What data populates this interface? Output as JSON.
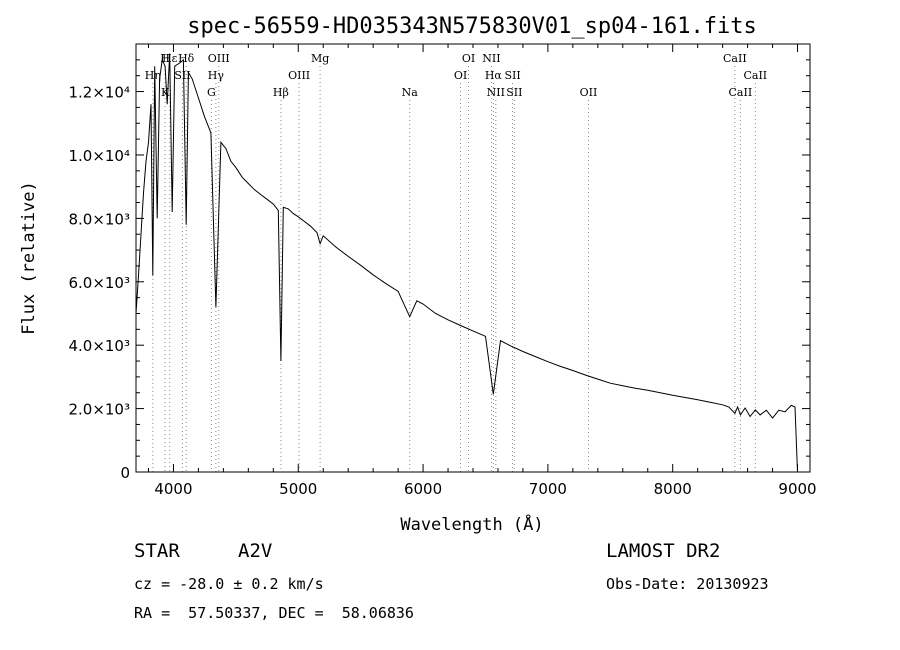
{
  "chart_data": {
    "type": "line",
    "title": "spec-56559-HD035343N575830V01_sp04-161.fits",
    "xlabel": "Wavelength (Å)",
    "ylabel": "Flux (relative)",
    "xlim": [
      3700,
      9100
    ],
    "ylim": [
      0,
      13500
    ],
    "x_ticks": [
      {
        "value": 4000,
        "label": "4000"
      },
      {
        "value": 5000,
        "label": "5000"
      },
      {
        "value": 6000,
        "label": "6000"
      },
      {
        "value": 7000,
        "label": "7000"
      },
      {
        "value": 8000,
        "label": "8000"
      },
      {
        "value": 9000,
        "label": "9000"
      }
    ],
    "y_ticks": [
      {
        "value": 0,
        "label": "0"
      },
      {
        "value": 2000,
        "label": "2.0×10³"
      },
      {
        "value": 4000,
        "label": "4.0×10³"
      },
      {
        "value": 6000,
        "label": "6.0×10³"
      },
      {
        "value": 8000,
        "label": "8.0×10³"
      },
      {
        "value": 10000,
        "label": "1.0×10⁴"
      },
      {
        "value": 12000,
        "label": "1.2×10⁴"
      }
    ],
    "line_color": "#000000",
    "marker_color": "#888888",
    "spectral_lines": [
      {
        "label": "Hε",
        "wavelength": 3970,
        "row": 0
      },
      {
        "label": "H",
        "wavelength": 3933,
        "row": 0
      },
      {
        "label": "Hδ",
        "wavelength": 4102,
        "row": 0
      },
      {
        "label": "OIII",
        "wavelength": 4363,
        "row": 0
      },
      {
        "label": "Mg",
        "wavelength": 5175,
        "row": 0
      },
      {
        "label": "OI",
        "wavelength": 6364,
        "row": 0
      },
      {
        "label": "NII",
        "wavelength": 6548,
        "row": 0
      },
      {
        "label": "CaII",
        "wavelength": 8498,
        "row": 0
      },
      {
        "label": "Hη",
        "wavelength": 3835,
        "row": 1
      },
      {
        "label": "SII",
        "wavelength": 4072,
        "row": 1
      },
      {
        "label": "Hγ",
        "wavelength": 4340,
        "row": 1
      },
      {
        "label": "OIII",
        "wavelength": 5007,
        "row": 1
      },
      {
        "label": "OI",
        "wavelength": 6300,
        "row": 1
      },
      {
        "label": "Hα",
        "wavelength": 6563,
        "row": 1
      },
      {
        "label": "SII",
        "wavelength": 6717,
        "row": 1
      },
      {
        "label": "CaII",
        "wavelength": 8662,
        "row": 1
      },
      {
        "label": "K",
        "wavelength": 3933,
        "row": 2
      },
      {
        "label": "G",
        "wavelength": 4304,
        "row": 2
      },
      {
        "label": "Hβ",
        "wavelength": 4861,
        "row": 2
      },
      {
        "label": "Na",
        "wavelength": 5893,
        "row": 2
      },
      {
        "label": "NII",
        "wavelength": 6583,
        "row": 2
      },
      {
        "label": "SII",
        "wavelength": 6731,
        "row": 2
      },
      {
        "label": "OII",
        "wavelength": 7325,
        "row": 2
      },
      {
        "label": "CaII",
        "wavelength": 8542,
        "row": 2
      }
    ],
    "series": [
      {
        "x": [
          3700,
          3720,
          3740,
          3760,
          3780,
          3800,
          3820,
          3835,
          3850,
          3870,
          3889,
          3910,
          3933,
          3950,
          3970,
          3990,
          4010,
          4050,
          4080,
          4102,
          4120,
          4150,
          4200,
          4250,
          4300,
          4340,
          4380,
          4420,
          4460,
          4500,
          4550,
          4600,
          4650,
          4700,
          4750,
          4800,
          4840,
          4861,
          4880,
          4920,
          4960,
          5000,
          5050,
          5100,
          5150,
          5175,
          5200,
          5300,
          5400,
          5500,
          5600,
          5700,
          5800,
          5893,
          5950,
          6000,
          6100,
          6200,
          6300,
          6400,
          6500,
          6563,
          6620,
          6700,
          6800,
          6900,
          7000,
          7100,
          7200,
          7300,
          7400,
          7500,
          7600,
          7700,
          7800,
          7900,
          8000,
          8100,
          8200,
          8300,
          8400,
          8450,
          8498,
          8520,
          8542,
          8580,
          8620,
          8662,
          8700,
          8750,
          8800,
          8850,
          8900,
          8950,
          8980,
          9000
        ],
        "y": [
          5000,
          6200,
          7500,
          8800,
          9800,
          10400,
          11600,
          6200,
          12800,
          8000,
          12400,
          13000,
          12800,
          11600,
          13200,
          8200,
          12800,
          12900,
          13000,
          7800,
          12600,
          12400,
          11800,
          11200,
          10700,
          5200,
          10400,
          10200,
          9800,
          9600,
          9300,
          9100,
          8900,
          8750,
          8600,
          8450,
          8250,
          3500,
          8350,
          8300,
          8150,
          8050,
          7900,
          7750,
          7550,
          7200,
          7450,
          7100,
          6800,
          6520,
          6220,
          5950,
          5700,
          4900,
          5400,
          5300,
          5000,
          4800,
          4620,
          4450,
          4280,
          2450,
          4140,
          3980,
          3800,
          3640,
          3480,
          3330,
          3200,
          3060,
          2930,
          2800,
          2720,
          2640,
          2580,
          2500,
          2420,
          2350,
          2280,
          2200,
          2120,
          2050,
          1850,
          2050,
          1800,
          2020,
          1750,
          1960,
          1800,
          1950,
          1700,
          1950,
          1900,
          2100,
          2050,
          0
        ]
      }
    ]
  },
  "info": {
    "object_type": "STAR",
    "subclass": "A2V",
    "survey": "LAMOST DR2",
    "redshift": "cz = -28.0 ± 0.2 km/s",
    "obs_date": "Obs-Date: 20130923",
    "coords": "RA =  57.50337, DEC =  58.06836"
  }
}
